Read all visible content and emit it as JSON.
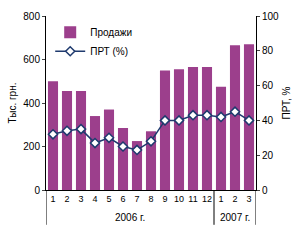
{
  "chart_data": {
    "type": "bar",
    "categories": [
      "1",
      "2",
      "3",
      "4",
      "5",
      "6",
      "7",
      "8",
      "9",
      "10",
      "11",
      "12",
      "1",
      "2",
      "3"
    ],
    "groups": [
      {
        "label": "2006 г.",
        "count": 12
      },
      {
        "label": "2007 г.",
        "count": 3
      }
    ],
    "y_label": "Тыс. грн.",
    "y2_label": "ПРТ, %",
    "ylim": [
      0,
      800
    ],
    "yticks": [
      0,
      200,
      400,
      600,
      800
    ],
    "y2lim": [
      0,
      100
    ],
    "y2ticks": [
      0,
      20,
      40,
      60,
      80,
      100
    ],
    "grid": false,
    "legend": "top left",
    "series": [
      {
        "name": "Продажи",
        "type": "bar",
        "color": "#9c3f8c",
        "values": [
          500,
          455,
          455,
          340,
          370,
          285,
          225,
          270,
          550,
          555,
          565,
          565,
          475,
          665,
          670
        ]
      },
      {
        "name": "ПРТ (%)",
        "type": "line",
        "axis": "y2",
        "color": "#1f3a6e",
        "marker": "diamond",
        "values": [
          32,
          34,
          35,
          27,
          30,
          25,
          23,
          28,
          40,
          40,
          43,
          43,
          42,
          45,
          40
        ]
      }
    ]
  }
}
